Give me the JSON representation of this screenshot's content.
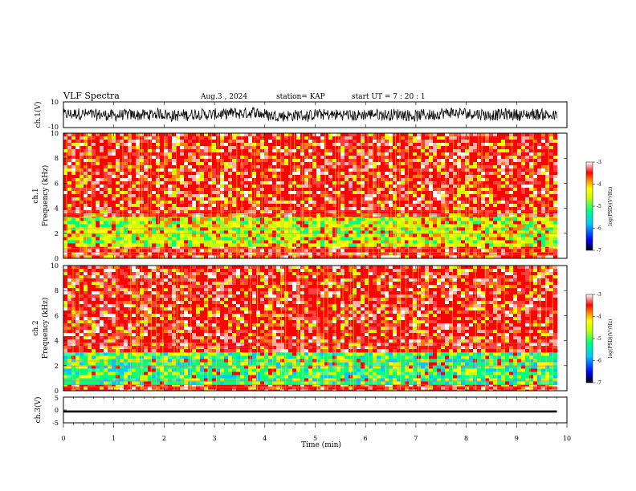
{
  "header": {
    "title": "VLF Spectra",
    "date": "Aug.3 , 2024",
    "station": "station= KAP",
    "start": "start UT = 7 : 20 : 1"
  },
  "colors": {
    "spectrogram_scale": [
      "#000000",
      "#0000ff",
      "#00c8ff",
      "#00ff80",
      "#c8ff00",
      "#ffff00",
      "#ff8000",
      "#ff0000",
      "#ffffff"
    ],
    "waveform": "#000000"
  },
  "chart_data": [
    {
      "id": "ch1-waveform",
      "type": "line",
      "ylabel": "ch.1(V)",
      "ylim": [
        -10,
        10
      ],
      "yticks": [
        "10",
        "-10"
      ],
      "xlim": [
        0,
        10
      ],
      "series": [
        {
          "values_range": [
            -9.5,
            9.5
          ],
          "mean": 0,
          "duration_min": 9.8
        }
      ]
    },
    {
      "id": "ch1-spectrogram",
      "type": "heatmap",
      "ylabel": "ch.1\nFrequency (kHz)",
      "ylim": [
        0,
        10
      ],
      "yticks": [
        "0",
        "2",
        "4",
        "6",
        "8",
        "10"
      ],
      "xlim": [
        0,
        10
      ],
      "data_end_min": 9.8,
      "colorbar": {
        "label": "log(PSD)(V²/Hz)",
        "range": [
          -7,
          -3
        ],
        "ticks": [
          "-3",
          "-4",
          "-5",
          "-6",
          "-7"
        ]
      },
      "bands": [
        {
          "from_khz": 0,
          "to_khz": 1.0,
          "level": "high"
        },
        {
          "from_khz": 1.0,
          "to_khz": 3.5,
          "level": "mid"
        },
        {
          "from_khz": 3.5,
          "to_khz": 10,
          "level": "high"
        }
      ]
    },
    {
      "id": "ch2-spectrogram",
      "type": "heatmap",
      "ylabel": "ch.2\nFrequency (kHz)",
      "ylim": [
        0,
        10
      ],
      "yticks": [
        "0",
        "2",
        "4",
        "6",
        "8",
        "10"
      ],
      "xlim": [
        0,
        10
      ],
      "data_end_min": 9.8,
      "colorbar": {
        "label": "log(PSD)(V²/Hz)",
        "range": [
          -7,
          -3
        ],
        "ticks": [
          "-3",
          "-4",
          "-5",
          "-6",
          "-7"
        ]
      },
      "bands": [
        {
          "from_khz": 0,
          "to_khz": 0.6,
          "level": "high"
        },
        {
          "from_khz": 0.6,
          "to_khz": 3.3,
          "level": "low"
        },
        {
          "from_khz": 3.3,
          "to_khz": 10,
          "level": "high"
        }
      ]
    },
    {
      "id": "ch3-waveform",
      "type": "line",
      "ylabel": "ch.3(V)",
      "ylim": [
        -5,
        5
      ],
      "yticks": [
        "5",
        "0",
        "-5"
      ],
      "xlim": [
        0,
        10
      ],
      "xlabel": "Time (min)",
      "xticks": [
        "0",
        "1",
        "2",
        "3",
        "4",
        "5",
        "6",
        "7",
        "8",
        "9",
        "10"
      ],
      "series": [
        {
          "values_range": [
            -1.0,
            -0.2
          ],
          "mean": -0.6,
          "duration_min": 9.8
        }
      ]
    }
  ]
}
